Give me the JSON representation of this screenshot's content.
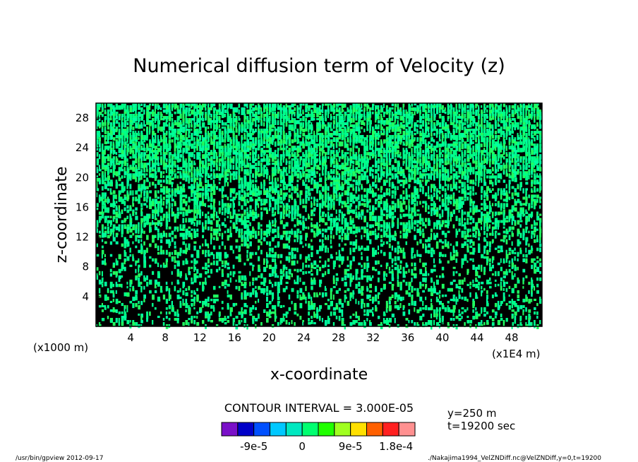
{
  "chart_data": {
    "type": "heatmap",
    "title": "Numerical diffusion term of Velocity (z)",
    "xlabel": "x-coordinate",
    "ylabel": "z-coordinate",
    "x_unit_label": "(x1E4 m)",
    "y_unit_label": "(x1000 m)",
    "xlim": [
      0,
      51.5
    ],
    "ylim": [
      0,
      30
    ],
    "x_ticks": [
      4,
      8,
      12,
      16,
      20,
      24,
      28,
      32,
      36,
      40,
      44,
      48
    ],
    "y_ticks": [
      4,
      8,
      12,
      16,
      20,
      24,
      28
    ],
    "contour_interval_text": "CONTOUR INTERVAL = 3.000E-05",
    "annotations": [
      "y=250 m",
      "t=19200 sec"
    ],
    "colorbar": {
      "colors": [
        "#7a10c8",
        "#0000c8",
        "#0050ff",
        "#00c8ff",
        "#00e8c0",
        "#00ff70",
        "#20ff00",
        "#a0ff20",
        "#ffe000",
        "#ff6000",
        "#ff2020",
        "#ff9090"
      ],
      "labels": [
        "-9e-5",
        "0",
        "9e-5",
        "1.8e-4"
      ]
    },
    "field_colors": {
      "background": "#000000",
      "dominant": "#00ff88",
      "accent": "#20ff60"
    },
    "field_description_bands": [
      {
        "z_range": [
          0,
          12
        ],
        "density": 0.25
      },
      {
        "z_range": [
          12,
          20
        ],
        "density": 0.45
      },
      {
        "z_range": [
          20,
          30
        ],
        "density": 0.7
      }
    ]
  },
  "footer": {
    "left": "/usr/bin/gpview   2012-09-17",
    "right": "./Nakajima1994_VelZNDiff.nc@VelZNDiff,y=0,t=19200"
  }
}
